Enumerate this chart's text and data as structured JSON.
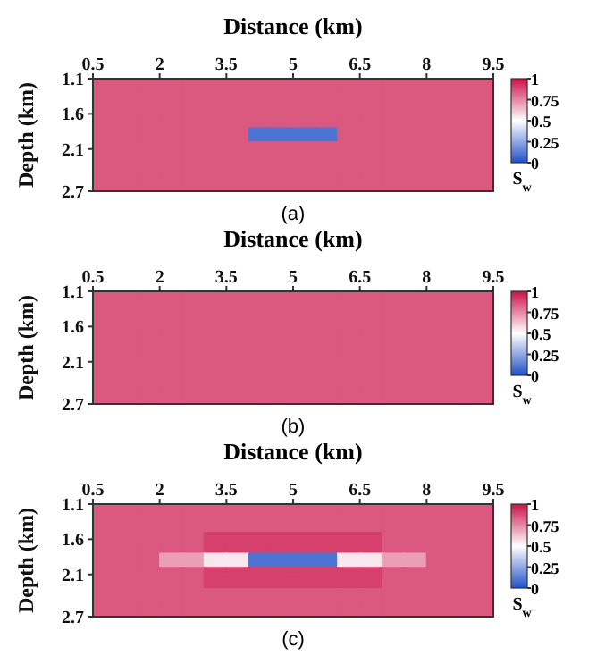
{
  "chart_data": [
    {
      "type": "heatmap",
      "xlabel": "Distance (km)",
      "ylabel": "Depth (km)",
      "clabel": "S$_{w}$",
      "xlim": [
        0.5,
        9.5
      ],
      "xticks": [
        0.5,
        2,
        3.5,
        5,
        6.5,
        8,
        9.5
      ],
      "ylim": [
        2.7,
        1.1
      ],
      "yticks": [
        1.1,
        1.6,
        2.1,
        2.7
      ],
      "clim": [
        0,
        1
      ],
      "cticks": [
        0,
        0.25,
        0.5,
        0.75,
        1
      ],
      "annotations": [
        "(a)"
      ],
      "cells": [
        [
          0.85,
          0.85,
          0.85,
          0.85,
          0.85,
          0.85,
          0.85,
          0.85,
          0.85,
          0.85,
          0.85,
          0.85,
          0.85,
          0.85,
          0.85,
          0.85,
          0.85,
          0.85
        ],
        [
          0.85,
          0.85,
          0.85,
          0.85,
          0.85,
          0.85,
          0.85,
          0.85,
          0.85,
          0.85,
          0.85,
          0.85,
          0.85,
          0.85,
          0.85,
          0.85,
          0.85,
          0.85
        ],
        [
          0.85,
          0.85,
          0.85,
          0.85,
          0.85,
          0.85,
          0.85,
          0.85,
          0.85,
          0.85,
          0.85,
          0.85,
          0.85,
          0.85,
          0.85,
          0.85,
          0.85,
          0.85
        ],
        [
          0.85,
          0.85,
          0.85,
          0.85,
          0.85,
          0.85,
          0.85,
          0.85,
          0.85,
          0.85,
          0.85,
          0.85,
          0.85,
          0.85,
          0.85,
          0.85,
          0.85,
          0.85
        ],
        [
          0.85,
          0.85,
          0.85,
          0.85,
          0.85,
          0.85,
          0.85,
          0.85,
          0.85,
          0.85,
          0.85,
          0.85,
          0.85,
          0.85,
          0.85,
          0.85,
          0.85,
          0.85
        ],
        [
          0.85,
          0.85,
          0.85,
          0.85,
          0.85,
          0.85,
          0.85,
          0.85,
          0.85,
          0.85,
          0.85,
          0.85,
          0.85,
          0.85,
          0.85,
          0.85,
          0.85,
          0.85
        ],
        [
          0.85,
          0.85,
          0.85,
          0.85,
          0.85,
          0.85,
          0.85,
          0.85,
          0.85,
          0.85,
          0.85,
          0.85,
          0.85,
          0.85,
          0.85,
          0.85,
          0.85,
          0.85
        ],
        [
          0.85,
          0.85,
          0.85,
          0.85,
          0.85,
          0.85,
          0.85,
          0.1,
          0.1,
          0.1,
          0.1,
          0.85,
          0.85,
          0.85,
          0.85,
          0.85,
          0.85,
          0.85
        ],
        [
          0.85,
          0.85,
          0.85,
          0.85,
          0.85,
          0.85,
          0.85,
          0.1,
          0.1,
          0.1,
          0.1,
          0.85,
          0.85,
          0.85,
          0.85,
          0.85,
          0.85,
          0.85
        ],
        [
          0.85,
          0.85,
          0.85,
          0.85,
          0.85,
          0.85,
          0.85,
          0.85,
          0.85,
          0.85,
          0.85,
          0.85,
          0.85,
          0.85,
          0.85,
          0.85,
          0.85,
          0.85
        ],
        [
          0.85,
          0.85,
          0.85,
          0.85,
          0.85,
          0.85,
          0.85,
          0.85,
          0.85,
          0.85,
          0.85,
          0.85,
          0.85,
          0.85,
          0.85,
          0.85,
          0.85,
          0.85
        ],
        [
          0.85,
          0.85,
          0.85,
          0.85,
          0.85,
          0.85,
          0.85,
          0.85,
          0.85,
          0.85,
          0.85,
          0.85,
          0.85,
          0.85,
          0.85,
          0.85,
          0.85,
          0.85
        ],
        [
          0.85,
          0.85,
          0.85,
          0.85,
          0.85,
          0.85,
          0.85,
          0.85,
          0.85,
          0.85,
          0.85,
          0.85,
          0.85,
          0.85,
          0.85,
          0.85,
          0.85,
          0.85
        ],
        [
          0.85,
          0.85,
          0.85,
          0.85,
          0.85,
          0.85,
          0.85,
          0.85,
          0.85,
          0.85,
          0.85,
          0.85,
          0.85,
          0.85,
          0.85,
          0.85,
          0.85,
          0.85
        ],
        [
          0.85,
          0.85,
          0.85,
          0.85,
          0.85,
          0.85,
          0.85,
          0.85,
          0.85,
          0.85,
          0.85,
          0.85,
          0.85,
          0.85,
          0.85,
          0.85,
          0.85,
          0.85
        ],
        [
          0.85,
          0.85,
          0.85,
          0.85,
          0.85,
          0.85,
          0.85,
          0.85,
          0.85,
          0.85,
          0.85,
          0.85,
          0.85,
          0.85,
          0.85,
          0.85,
          0.85,
          0.85
        ]
      ]
    },
    {
      "type": "heatmap",
      "xlabel": "Distance (km)",
      "ylabel": "Depth (km)",
      "clabel": "S$_{w}$",
      "xlim": [
        0.5,
        9.5
      ],
      "xticks": [
        0.5,
        2,
        3.5,
        5,
        6.5,
        8,
        9.5
      ],
      "ylim": [
        2.7,
        1.1
      ],
      "yticks": [
        1.1,
        1.6,
        2.1,
        2.7
      ],
      "clim": [
        0,
        1
      ],
      "cticks": [
        0,
        0.25,
        0.5,
        0.75,
        1
      ],
      "annotations": [
        "(b)"
      ],
      "cells": [
        [
          0.85,
          0.85,
          0.85,
          0.85,
          0.85,
          0.85,
          0.85,
          0.85,
          0.85,
          0.85,
          0.85,
          0.85,
          0.85,
          0.85,
          0.85,
          0.85,
          0.85,
          0.85
        ],
        [
          0.85,
          0.85,
          0.85,
          0.85,
          0.85,
          0.85,
          0.85,
          0.85,
          0.85,
          0.85,
          0.85,
          0.85,
          0.85,
          0.85,
          0.85,
          0.85,
          0.85,
          0.85
        ],
        [
          0.85,
          0.85,
          0.85,
          0.85,
          0.85,
          0.85,
          0.85,
          0.85,
          0.85,
          0.85,
          0.85,
          0.85,
          0.85,
          0.85,
          0.85,
          0.85,
          0.85,
          0.85
        ],
        [
          0.85,
          0.85,
          0.85,
          0.85,
          0.85,
          0.85,
          0.85,
          0.85,
          0.85,
          0.85,
          0.85,
          0.85,
          0.85,
          0.85,
          0.85,
          0.85,
          0.85,
          0.85
        ],
        [
          0.85,
          0.85,
          0.85,
          0.85,
          0.85,
          0.85,
          0.85,
          0.85,
          0.85,
          0.85,
          0.85,
          0.85,
          0.85,
          0.85,
          0.85,
          0.85,
          0.85,
          0.85
        ],
        [
          0.85,
          0.85,
          0.85,
          0.85,
          0.85,
          0.85,
          0.85,
          0.85,
          0.85,
          0.85,
          0.85,
          0.85,
          0.85,
          0.85,
          0.85,
          0.85,
          0.85,
          0.85
        ],
        [
          0.85,
          0.85,
          0.85,
          0.85,
          0.85,
          0.85,
          0.85,
          0.85,
          0.85,
          0.85,
          0.85,
          0.85,
          0.85,
          0.85,
          0.85,
          0.85,
          0.85,
          0.85
        ],
        [
          0.85,
          0.85,
          0.85,
          0.85,
          0.85,
          0.85,
          0.85,
          0.85,
          0.85,
          0.85,
          0.85,
          0.85,
          0.85,
          0.85,
          0.85,
          0.85,
          0.85,
          0.85
        ],
        [
          0.85,
          0.85,
          0.85,
          0.85,
          0.85,
          0.85,
          0.85,
          0.85,
          0.85,
          0.85,
          0.85,
          0.85,
          0.85,
          0.85,
          0.85,
          0.85,
          0.85,
          0.85
        ],
        [
          0.85,
          0.85,
          0.85,
          0.85,
          0.85,
          0.85,
          0.85,
          0.85,
          0.85,
          0.85,
          0.85,
          0.85,
          0.85,
          0.85,
          0.85,
          0.85,
          0.85,
          0.85
        ],
        [
          0.85,
          0.85,
          0.85,
          0.85,
          0.85,
          0.85,
          0.85,
          0.85,
          0.85,
          0.85,
          0.85,
          0.85,
          0.85,
          0.85,
          0.85,
          0.85,
          0.85,
          0.85
        ],
        [
          0.85,
          0.85,
          0.85,
          0.85,
          0.85,
          0.85,
          0.85,
          0.85,
          0.85,
          0.85,
          0.85,
          0.85,
          0.85,
          0.85,
          0.85,
          0.85,
          0.85,
          0.85
        ],
        [
          0.85,
          0.85,
          0.85,
          0.85,
          0.85,
          0.85,
          0.85,
          0.85,
          0.85,
          0.85,
          0.85,
          0.85,
          0.85,
          0.85,
          0.85,
          0.85,
          0.85,
          0.85
        ],
        [
          0.85,
          0.85,
          0.85,
          0.85,
          0.85,
          0.85,
          0.85,
          0.85,
          0.85,
          0.85,
          0.85,
          0.85,
          0.85,
          0.85,
          0.85,
          0.85,
          0.85,
          0.85
        ],
        [
          0.85,
          0.85,
          0.85,
          0.85,
          0.85,
          0.85,
          0.85,
          0.85,
          0.85,
          0.85,
          0.85,
          0.85,
          0.85,
          0.85,
          0.85,
          0.85,
          0.85,
          0.85
        ],
        [
          0.85,
          0.85,
          0.85,
          0.85,
          0.85,
          0.85,
          0.85,
          0.85,
          0.85,
          0.85,
          0.85,
          0.85,
          0.85,
          0.85,
          0.85,
          0.85,
          0.85,
          0.85
        ]
      ]
    },
    {
      "type": "heatmap",
      "xlabel": "Distance (km)",
      "ylabel": "Depth (km)",
      "clabel": "S$_{w}$",
      "xlim": [
        0.5,
        9.5
      ],
      "xticks": [
        0.5,
        2,
        3.5,
        5,
        6.5,
        8,
        9.5
      ],
      "ylim": [
        2.7,
        1.1
      ],
      "yticks": [
        1.1,
        1.6,
        2.1,
        2.7
      ],
      "clim": [
        0,
        1
      ],
      "cticks": [
        0,
        0.25,
        0.5,
        0.75,
        1
      ],
      "annotations": [
        "(c)"
      ],
      "cells": [
        [
          0.85,
          0.85,
          0.85,
          0.85,
          0.85,
          0.85,
          0.85,
          0.85,
          0.85,
          0.85,
          0.85,
          0.85,
          0.85,
          0.85,
          0.85,
          0.85,
          0.85,
          0.85
        ],
        [
          0.85,
          0.85,
          0.85,
          0.85,
          0.85,
          0.85,
          0.85,
          0.85,
          0.85,
          0.85,
          0.85,
          0.85,
          0.85,
          0.85,
          0.85,
          0.85,
          0.85,
          0.85
        ],
        [
          0.85,
          0.85,
          0.85,
          0.85,
          0.85,
          0.85,
          0.85,
          0.85,
          0.85,
          0.85,
          0.85,
          0.85,
          0.85,
          0.85,
          0.85,
          0.85,
          0.85,
          0.85
        ],
        [
          0.85,
          0.85,
          0.85,
          0.85,
          0.85,
          0.85,
          0.85,
          0.85,
          0.85,
          0.85,
          0.85,
          0.85,
          0.85,
          0.85,
          0.85,
          0.85,
          0.85,
          0.85
        ],
        [
          0.85,
          0.85,
          0.85,
          0.85,
          0.85,
          0.9,
          0.9,
          0.9,
          0.9,
          0.9,
          0.9,
          0.9,
          0.9,
          0.85,
          0.85,
          0.85,
          0.85,
          0.85
        ],
        [
          0.85,
          0.85,
          0.85,
          0.85,
          0.85,
          0.9,
          0.9,
          0.9,
          0.9,
          0.9,
          0.9,
          0.9,
          0.9,
          0.85,
          0.85,
          0.85,
          0.85,
          0.85
        ],
        [
          0.85,
          0.85,
          0.85,
          0.85,
          0.85,
          0.9,
          0.9,
          0.9,
          0.9,
          0.9,
          0.9,
          0.9,
          0.9,
          0.85,
          0.85,
          0.85,
          0.85,
          0.85
        ],
        [
          0.85,
          0.85,
          0.85,
          0.7,
          0.7,
          0.55,
          0.55,
          0.1,
          0.1,
          0.1,
          0.1,
          0.55,
          0.55,
          0.7,
          0.7,
          0.85,
          0.85,
          0.85
        ],
        [
          0.85,
          0.85,
          0.85,
          0.7,
          0.7,
          0.55,
          0.55,
          0.1,
          0.1,
          0.1,
          0.1,
          0.55,
          0.55,
          0.7,
          0.7,
          0.85,
          0.85,
          0.85
        ],
        [
          0.85,
          0.85,
          0.85,
          0.85,
          0.85,
          0.9,
          0.9,
          0.9,
          0.9,
          0.9,
          0.9,
          0.9,
          0.9,
          0.85,
          0.85,
          0.85,
          0.85,
          0.85
        ],
        [
          0.85,
          0.85,
          0.85,
          0.85,
          0.85,
          0.9,
          0.9,
          0.9,
          0.9,
          0.9,
          0.9,
          0.9,
          0.9,
          0.85,
          0.85,
          0.85,
          0.85,
          0.85
        ],
        [
          0.85,
          0.85,
          0.85,
          0.85,
          0.85,
          0.9,
          0.9,
          0.9,
          0.9,
          0.9,
          0.9,
          0.9,
          0.9,
          0.85,
          0.85,
          0.85,
          0.85,
          0.85
        ],
        [
          0.85,
          0.85,
          0.85,
          0.85,
          0.85,
          0.85,
          0.85,
          0.85,
          0.85,
          0.85,
          0.85,
          0.85,
          0.85,
          0.85,
          0.85,
          0.85,
          0.85,
          0.85
        ],
        [
          0.85,
          0.85,
          0.85,
          0.85,
          0.85,
          0.85,
          0.85,
          0.85,
          0.85,
          0.85,
          0.85,
          0.85,
          0.85,
          0.85,
          0.85,
          0.85,
          0.85,
          0.85
        ],
        [
          0.85,
          0.85,
          0.85,
          0.85,
          0.85,
          0.85,
          0.85,
          0.85,
          0.85,
          0.85,
          0.85,
          0.85,
          0.85,
          0.85,
          0.85,
          0.85,
          0.85,
          0.85
        ],
        [
          0.85,
          0.85,
          0.85,
          0.85,
          0.85,
          0.85,
          0.85,
          0.85,
          0.85,
          0.85,
          0.85,
          0.85,
          0.85,
          0.85,
          0.85,
          0.85,
          0.85,
          0.85
        ]
      ]
    }
  ]
}
